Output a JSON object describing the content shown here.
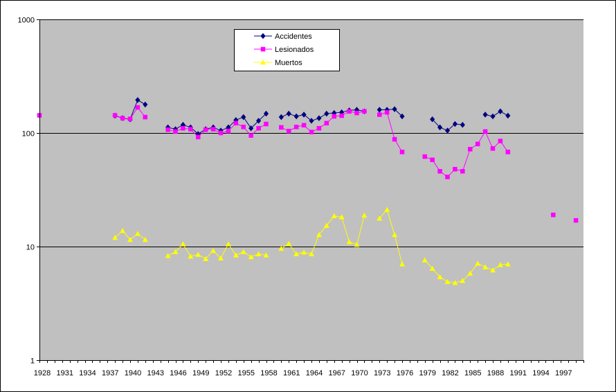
{
  "chart_data": {
    "type": "line",
    "title": "",
    "xlabel": "",
    "ylabel": "",
    "y_scale": "log",
    "ylim": [
      1,
      1000
    ],
    "y_ticks": [
      1,
      10,
      100,
      1000
    ],
    "y_tick_labels": [
      "1",
      "10",
      "100",
      "1000"
    ],
    "xlim": [
      1928,
      2000
    ],
    "x_tick_labels": [
      "1928",
      "1931",
      "1934",
      "1937",
      "1940",
      "1943",
      "1946",
      "1949",
      "1952",
      "1955",
      "1958",
      "1961",
      "1964",
      "1967",
      "1970",
      "1973",
      "1976",
      "1979",
      "1982",
      "1985",
      "1988",
      "1991",
      "1994",
      "1997"
    ],
    "grid": "horizontal major lines",
    "plot_background": "#c0c0c0",
    "legend_position": "top-center",
    "series": [
      {
        "name": "Accidentes",
        "color": "#000080",
        "marker": "diamond",
        "x": [
          1938,
          1939,
          1940,
          1941,
          1942,
          1945,
          1946,
          1947,
          1948,
          1949,
          1950,
          1951,
          1952,
          1953,
          1954,
          1955,
          1956,
          1957,
          1958,
          1960,
          1961,
          1962,
          1963,
          1964,
          1965,
          1966,
          1967,
          1968,
          1969,
          1970,
          1971,
          1973,
          1974,
          1975,
          1976,
          1980,
          1981,
          1982,
          1983,
          1984,
          1987,
          1988,
          1989,
          1990
        ],
        "values": [
          142,
          135,
          132,
          195,
          178,
          112,
          108,
          118,
          112,
          98,
          108,
          112,
          105,
          112,
          130,
          138,
          110,
          128,
          148,
          138,
          148,
          140,
          145,
          128,
          135,
          148,
          150,
          152,
          158,
          160,
          155,
          160,
          160,
          162,
          140,
          132,
          112,
          105,
          120,
          118,
          145,
          140,
          155,
          142
        ]
      },
      {
        "name": "Lesionados",
        "color": "#ff00ff",
        "marker": "square",
        "x": [
          1928,
          1938,
          1939,
          1940,
          1941,
          1942,
          1945,
          1946,
          1947,
          1948,
          1949,
          1950,
          1951,
          1952,
          1953,
          1954,
          1955,
          1956,
          1957,
          1958,
          1960,
          1961,
          1962,
          1963,
          1964,
          1965,
          1966,
          1967,
          1968,
          1969,
          1970,
          1971,
          1973,
          1974,
          1975,
          1976,
          1979,
          1980,
          1981,
          1982,
          1983,
          1984,
          1985,
          1986,
          1987,
          1988,
          1989,
          1990,
          1996,
          1999
        ],
        "values": [
          143,
          143,
          135,
          133,
          168,
          138,
          107,
          103,
          110,
          108,
          92,
          107,
          108,
          100,
          104,
          122,
          113,
          95,
          110,
          120,
          112,
          104,
          113,
          117,
          102,
          110,
          122,
          140,
          142,
          155,
          150,
          155,
          145,
          152,
          88,
          68,
          62,
          58,
          46,
          41,
          48,
          46,
          72,
          80,
          103,
          73,
          85,
          68,
          19,
          17
        ]
      },
      {
        "name": "Muertos",
        "color": "#ffff00",
        "marker": "triangle",
        "x": [
          1938,
          1939,
          1940,
          1941,
          1942,
          1945,
          1946,
          1947,
          1948,
          1949,
          1950,
          1951,
          1952,
          1953,
          1954,
          1955,
          1956,
          1957,
          1958,
          1960,
          1961,
          1962,
          1963,
          1964,
          1965,
          1966,
          1967,
          1968,
          1969,
          1970,
          1971,
          1973,
          1974,
          1975,
          1976,
          1979,
          1980,
          1981,
          1982,
          1983,
          1984,
          1985,
          1986,
          1987,
          1988,
          1989,
          1990
        ],
        "values": [
          12,
          13.8,
          11.5,
          13,
          11.5,
          8.3,
          9,
          10.5,
          8.2,
          8.5,
          7.8,
          9.2,
          7.9,
          10.5,
          8.4,
          9,
          8.1,
          8.6,
          8.4,
          9.6,
          10.6,
          8.6,
          8.9,
          8.6,
          12.7,
          15.3,
          18.6,
          18.2,
          11,
          10.4,
          18.8,
          17.7,
          21.1,
          12.7,
          7,
          7.6,
          6.4,
          5.4,
          4.9,
          4.8,
          5,
          5.8,
          7.1,
          6.6,
          6.2,
          6.9,
          7
        ]
      }
    ]
  }
}
